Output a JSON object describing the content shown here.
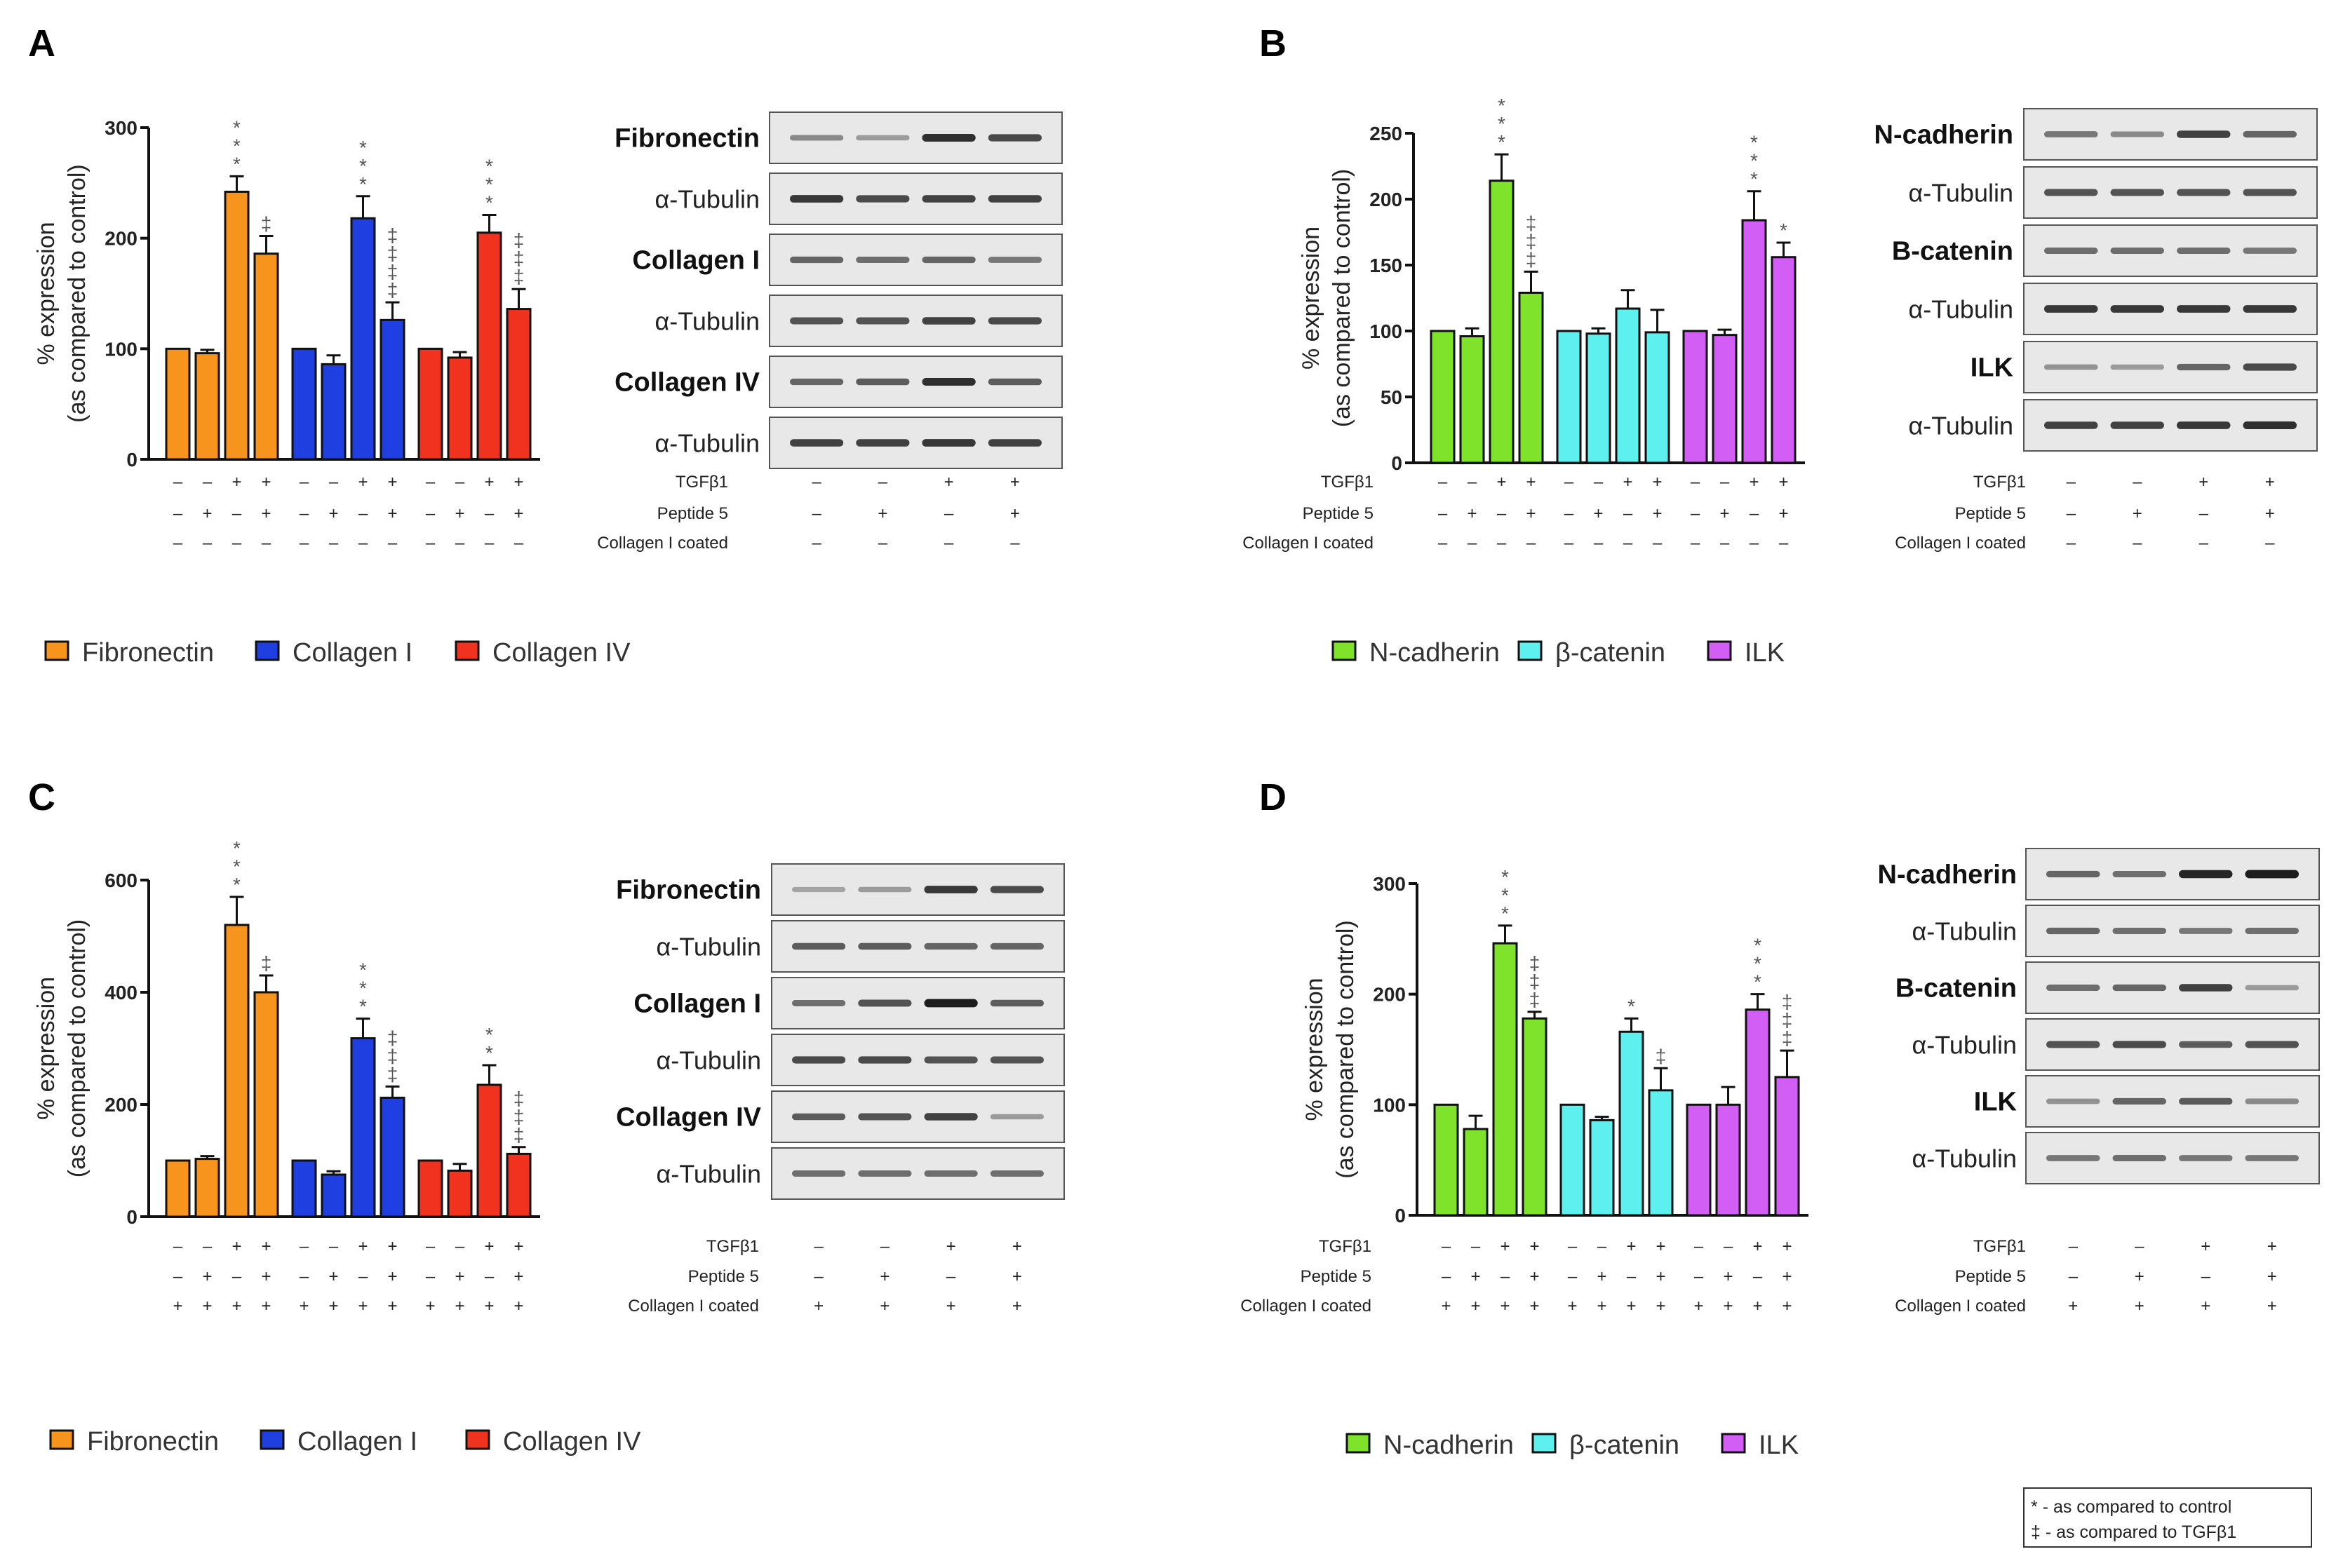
{
  "colors": {
    "Fibronectin": "#f7941d",
    "Collagen I": "#1f3fe0",
    "Collagen IV": "#f0321e",
    "N-cadherin": "#7ee32a",
    "β-catenin": "#5ef0ee",
    "ILK": "#d35ef5"
  },
  "footnote": {
    "line1": "* - as compared to control",
    "line2": "‡ - as compared to TGFβ1"
  },
  "chart_data": [
    {
      "panel": "A",
      "type": "bar",
      "ylabel_line1": "% expression",
      "ylabel_line2": "(as compared to control)",
      "ylim": [
        0,
        300
      ],
      "yticks": [
        "0",
        "100",
        "200",
        "300"
      ],
      "condition_labels": {
        "tgf": "TGFβ1",
        "peptide": "Peptide 5",
        "coated": "Collagen I coated"
      },
      "conditions": {
        "tgf": [
          "–",
          "–",
          "+",
          "+"
        ],
        "peptide": [
          "–",
          "+",
          "–",
          "+"
        ],
        "coated": [
          "–",
          "–",
          "–",
          "–"
        ]
      },
      "series": [
        {
          "name": "Fibronectin",
          "values": [
            100,
            96,
            242,
            186
          ],
          "errors": [
            0,
            3,
            14,
            16
          ],
          "sig": [
            "",
            "",
            "* * *",
            "‡"
          ]
        },
        {
          "name": "Collagen I",
          "values": [
            100,
            86,
            218,
            126
          ],
          "errors": [
            0,
            8,
            20,
            16
          ],
          "sig": [
            "",
            "",
            "* * *",
            "‡ ‡ ‡ ‡"
          ]
        },
        {
          "name": "Collagen IV",
          "values": [
            100,
            92,
            205,
            136
          ],
          "errors": [
            0,
            5,
            16,
            18
          ],
          "sig": [
            "",
            "",
            "* * *",
            "‡ ‡ ‡"
          ]
        }
      ],
      "legend": [
        "Fibronectin",
        "Collagen I",
        "Collagen IV"
      ],
      "blot": {
        "rows": [
          {
            "label": "Fibronectin",
            "bold": true,
            "bands": [
              0.35,
              0.25,
              0.85,
              0.7
            ]
          },
          {
            "label": "α-Tubulin",
            "bold": false,
            "bands": [
              0.8,
              0.7,
              0.75,
              0.75
            ]
          },
          {
            "label": "Collagen I",
            "bold": true,
            "bands": [
              0.55,
              0.5,
              0.55,
              0.45
            ]
          },
          {
            "label": "α-Tubulin",
            "bold": false,
            "bands": [
              0.65,
              0.65,
              0.75,
              0.7
            ]
          },
          {
            "label": "Collagen IV",
            "bold": true,
            "bands": [
              0.55,
              0.6,
              0.85,
              0.6
            ]
          },
          {
            "label": "α-Tubulin",
            "bold": false,
            "bands": [
              0.75,
              0.75,
              0.8,
              0.75
            ]
          }
        ],
        "conditions": {
          "tgf": [
            "–",
            "–",
            "+",
            "+"
          ],
          "peptide": [
            "–",
            "+",
            "–",
            "+"
          ],
          "coated": [
            "–",
            "–",
            "–",
            "–"
          ]
        }
      }
    },
    {
      "panel": "B",
      "type": "bar",
      "ylabel_line1": "% expression",
      "ylabel_line2": "(as compared to control)",
      "ylim": [
        0,
        250
      ],
      "yticks": [
        "0",
        "50",
        "100",
        "150",
        "200",
        "250"
      ],
      "condition_labels": {
        "tgf": "TGFβ1",
        "peptide": "Peptide 5",
        "coated": "Collagen I coated"
      },
      "conditions": {
        "tgf": [
          "–",
          "–",
          "+",
          "+"
        ],
        "peptide": [
          "–",
          "+",
          "–",
          "+"
        ],
        "coated": [
          "–",
          "–",
          "–",
          "–"
        ]
      },
      "series": [
        {
          "name": "N-cadherin",
          "values": [
            100,
            96,
            214,
            129
          ],
          "errors": [
            0,
            6,
            20,
            16
          ],
          "sig": [
            "",
            "",
            "* * *",
            "‡ ‡ ‡"
          ]
        },
        {
          "name": "β-catenin",
          "values": [
            100,
            98,
            117,
            99
          ],
          "errors": [
            0,
            4,
            14,
            17
          ],
          "sig": [
            "",
            "",
            "",
            ""
          ]
        },
        {
          "name": "ILK",
          "values": [
            100,
            97,
            184,
            156
          ],
          "errors": [
            0,
            4,
            22,
            11
          ],
          "sig": [
            "",
            "",
            "* * *",
            "*"
          ]
        }
      ],
      "legend": [
        "N-cadherin",
        "β-catenin",
        "ILK"
      ],
      "blot": {
        "rows": [
          {
            "label": "N-cadherin",
            "bold": true,
            "bands": [
              0.45,
              0.35,
              0.75,
              0.55
            ]
          },
          {
            "label": "α-Tubulin",
            "bold": false,
            "bands": [
              0.65,
              0.65,
              0.65,
              0.65
            ]
          },
          {
            "label": "B-catenin",
            "bold": true,
            "bands": [
              0.5,
              0.5,
              0.5,
              0.45
            ]
          },
          {
            "label": "α-Tubulin",
            "bold": false,
            "bands": [
              0.8,
              0.8,
              0.8,
              0.8
            ]
          },
          {
            "label": "ILK",
            "bold": true,
            "bands": [
              0.3,
              0.25,
              0.55,
              0.7
            ]
          },
          {
            "label": "α-Tubulin",
            "bold": false,
            "bands": [
              0.75,
              0.75,
              0.8,
              0.85
            ]
          }
        ],
        "conditions": {
          "tgf": [
            "–",
            "–",
            "+",
            "+"
          ],
          "peptide": [
            "–",
            "+",
            "–",
            "+"
          ],
          "coated": [
            "–",
            "–",
            "–",
            "–"
          ]
        }
      }
    },
    {
      "panel": "C",
      "type": "bar",
      "ylabel_line1": "% expression",
      "ylabel_line2": "(as compared to control)",
      "ylim": [
        0,
        600
      ],
      "yticks": [
        "0",
        "200",
        "400",
        "600"
      ],
      "condition_labels": {
        "tgf": "TGFβ1",
        "peptide": "Peptide 5",
        "coated": "Collagen I coated"
      },
      "conditions": {
        "tgf": [
          "–",
          "–",
          "+",
          "+"
        ],
        "peptide": [
          "–",
          "+",
          "–",
          "+"
        ],
        "coated": [
          "+",
          "+",
          "+",
          "+"
        ]
      },
      "series": [
        {
          "name": "Fibronectin",
          "values": [
            100,
            103,
            520,
            400
          ],
          "errors": [
            0,
            5,
            50,
            30
          ],
          "sig": [
            "",
            "",
            "* * *",
            "‡"
          ]
        },
        {
          "name": "Collagen I",
          "values": [
            100,
            75,
            318,
            212
          ],
          "errors": [
            0,
            6,
            35,
            20
          ],
          "sig": [
            "",
            "",
            "* * *",
            "‡ ‡ ‡"
          ]
        },
        {
          "name": "Collagen IV",
          "values": [
            100,
            82,
            235,
            112
          ],
          "errors": [
            0,
            12,
            35,
            12
          ],
          "sig": [
            "",
            "",
            "* *",
            "‡ ‡ ‡"
          ]
        }
      ],
      "legend": [
        "Fibronectin",
        "Collagen I",
        "Collagen IV"
      ],
      "blot": {
        "rows": [
          {
            "label": "Fibronectin",
            "bold": true,
            "bands": [
              0.2,
              0.25,
              0.8,
              0.7
            ]
          },
          {
            "label": "α-Tubulin",
            "bold": false,
            "bands": [
              0.6,
              0.6,
              0.55,
              0.55
            ]
          },
          {
            "label": "Collagen I",
            "bold": true,
            "bands": [
              0.5,
              0.65,
              0.95,
              0.6
            ]
          },
          {
            "label": "α-Tubulin",
            "bold": false,
            "bands": [
              0.7,
              0.7,
              0.65,
              0.65
            ]
          },
          {
            "label": "Collagen IV",
            "bold": true,
            "bands": [
              0.6,
              0.65,
              0.75,
              0.25
            ]
          },
          {
            "label": "α-Tubulin",
            "bold": false,
            "bands": [
              0.5,
              0.5,
              0.5,
              0.5
            ]
          }
        ],
        "conditions": {
          "tgf": [
            "–",
            "–",
            "+",
            "+"
          ],
          "peptide": [
            "–",
            "+",
            "–",
            "+"
          ],
          "coated": [
            "+",
            "+",
            "+",
            "+"
          ]
        }
      }
    },
    {
      "panel": "D",
      "type": "bar",
      "ylabel_line1": "% expression",
      "ylabel_line2": "(as compared to control)",
      "ylim": [
        0,
        300
      ],
      "yticks": [
        "0",
        "100",
        "200",
        "300"
      ],
      "condition_labels": {
        "tgf": "TGFβ1",
        "peptide": "Peptide 5",
        "coated": "Collagen I coated"
      },
      "conditions": {
        "tgf": [
          "–",
          "–",
          "+",
          "+"
        ],
        "peptide": [
          "–",
          "+",
          "–",
          "+"
        ],
        "coated": [
          "+",
          "+",
          "+",
          "+"
        ]
      },
      "series": [
        {
          "name": "N-cadherin",
          "values": [
            100,
            78,
            246,
            178
          ],
          "errors": [
            0,
            12,
            16,
            6
          ],
          "sig": [
            "",
            "",
            "* * *",
            "‡ ‡ ‡"
          ]
        },
        {
          "name": "β-catenin",
          "values": [
            100,
            86,
            166,
            113
          ],
          "errors": [
            0,
            3,
            12,
            20
          ],
          "sig": [
            "",
            "",
            "*",
            "‡"
          ]
        },
        {
          "name": "ILK",
          "values": [
            100,
            100,
            186,
            125
          ],
          "errors": [
            0,
            16,
            14,
            24
          ],
          "sig": [
            "",
            "",
            "* * *",
            "‡ ‡ ‡"
          ]
        }
      ],
      "legend": [
        "N-cadherin",
        "β-catenin",
        "ILK"
      ],
      "blot": {
        "rows": [
          {
            "label": "N-cadherin",
            "bold": true,
            "bands": [
              0.55,
              0.5,
              0.9,
              0.95
            ]
          },
          {
            "label": "α-Tubulin",
            "bold": false,
            "bands": [
              0.55,
              0.5,
              0.45,
              0.5
            ]
          },
          {
            "label": "B-catenin",
            "bold": true,
            "bands": [
              0.5,
              0.55,
              0.75,
              0.25
            ]
          },
          {
            "label": "α-Tubulin",
            "bold": false,
            "bands": [
              0.65,
              0.7,
              0.6,
              0.65
            ]
          },
          {
            "label": "ILK",
            "bold": true,
            "bands": [
              0.3,
              0.55,
              0.6,
              0.35
            ]
          },
          {
            "label": "α-Tubulin",
            "bold": false,
            "bands": [
              0.45,
              0.5,
              0.45,
              0.45
            ]
          }
        ],
        "conditions": {
          "tgf": [
            "–",
            "–",
            "+",
            "+"
          ],
          "peptide": [
            "–",
            "+",
            "–",
            "+"
          ],
          "coated": [
            "+",
            "+",
            "+",
            "+"
          ]
        }
      }
    }
  ]
}
